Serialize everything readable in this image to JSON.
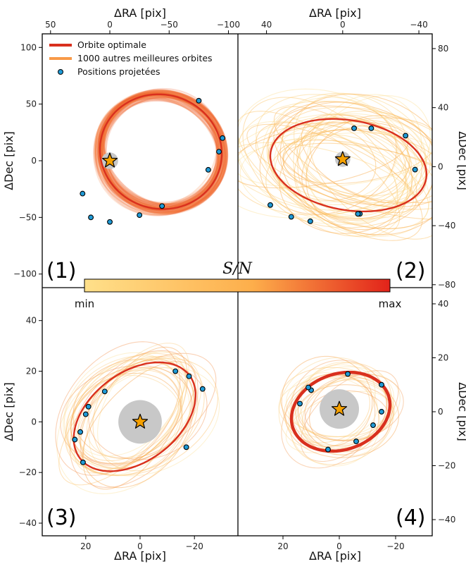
{
  "colors": {
    "optimal": "#d9301e",
    "others": "#f89a48",
    "point_fill": "#1f9ad6",
    "star": "#f5a000",
    "disk": "#c8c8c8",
    "cbar_low": "#ffe08a",
    "cbar_mid": "#fdae4b",
    "cbar_high": "#e2231a"
  },
  "legend": {
    "optimal": "Orbite optimale",
    "others": "1000 autres meilleures orbites",
    "points": "Positions projetées"
  },
  "colorbar": {
    "title": "S/N",
    "min_label": "min",
    "max_label": "max"
  },
  "chart_data": [
    {
      "type": "scatter",
      "panel_label": "(1)",
      "xlabel": "ΔRA [pix]",
      "ylabel": "ΔDec [pix]",
      "xaxis_position": "top",
      "yaxis_position": "left",
      "xlim": [
        57,
        -108
      ],
      "ylim": [
        -112,
        112
      ],
      "xticks": [
        50,
        0,
        -50,
        -100
      ],
      "yticks": [
        100,
        50,
        0,
        -50,
        -100
      ],
      "optimal_orbit": {
        "center": [
          -43,
          8
        ],
        "semi_axes": [
          52,
          50
        ],
        "tilt_deg": 35
      },
      "points": {
        "x": [
          -75,
          -95,
          -92,
          -83,
          -44,
          -25,
          0,
          16,
          23
        ],
        "y": [
          53,
          20,
          8,
          -8,
          -40,
          -48,
          -54,
          -50,
          -29
        ]
      },
      "star": [
        0,
        0
      ],
      "disk_radius": 7
    },
    {
      "type": "scatter",
      "panel_label": "(2)",
      "xlabel": "ΔRA [pix]",
      "ylabel": "ΔDec [pix]",
      "xaxis_position": "top",
      "yaxis_position": "right",
      "xlim": [
        55,
        -47
      ],
      "ylim": [
        -82,
        90
      ],
      "xticks": [
        40,
        0,
        -40
      ],
      "yticks": [
        80,
        40,
        0,
        -40,
        -80
      ],
      "optimal_orbit": {
        "center": [
          -3,
          1
        ],
        "semi_axes": [
          42,
          30
        ],
        "tilt_deg": 18
      },
      "points": {
        "x": [
          -6,
          -15,
          -33,
          -38,
          38,
          27,
          17,
          -9,
          -8
        ],
        "y": [
          26,
          26,
          21,
          -2,
          -26,
          -34,
          -37,
          -32,
          -32
        ]
      },
      "star": [
        0,
        5
      ],
      "disk_radius": 4
    },
    {
      "type": "scatter",
      "panel_label": "(3)",
      "xlabel": "ΔRA [pix]",
      "ylabel": "ΔDec [pix]",
      "xaxis_position": "bottom",
      "yaxis_position": "left",
      "xlim": [
        36,
        -36
      ],
      "ylim": [
        -45,
        53
      ],
      "xticks": [
        20,
        0,
        -20
      ],
      "yticks": [
        40,
        20,
        0,
        -20,
        -40
      ],
      "optimal_orbit": {
        "center": [
          2,
          2
        ],
        "semi_axes": [
          26,
          17
        ],
        "tilt_deg": -42
      },
      "points": {
        "x": [
          -13,
          -18,
          -23,
          -17,
          13,
          19,
          20,
          22,
          24,
          21
        ],
        "y": [
          20,
          18,
          13,
          -10,
          12,
          6,
          3,
          -4,
          -7,
          -16
        ]
      },
      "star": [
        0,
        0
      ],
      "disk_radius": 8
    },
    {
      "type": "scatter",
      "panel_label": "(4)",
      "xlabel": "ΔRA [pix]",
      "ylabel": "ΔDec [pix]",
      "xaxis_position": "bottom",
      "yaxis_position": "right",
      "xlim": [
        36,
        -33
      ],
      "ylim": [
        -46,
        46
      ],
      "xticks": [
        20,
        0,
        -20
      ],
      "yticks": [
        40,
        20,
        0,
        -20,
        -40
      ],
      "optimal_orbit": {
        "center": [
          -0.5,
          0
        ],
        "semi_axes": [
          18,
          14
        ],
        "tilt_deg": -22
      },
      "points": {
        "x": [
          -3,
          -15,
          -15,
          -12,
          -6,
          4,
          10,
          11,
          14
        ],
        "y": [
          14,
          10,
          0,
          -5,
          -11,
          -14,
          8,
          9,
          3
        ]
      },
      "star": [
        0,
        1
      ],
      "disk_radius": 7
    }
  ]
}
